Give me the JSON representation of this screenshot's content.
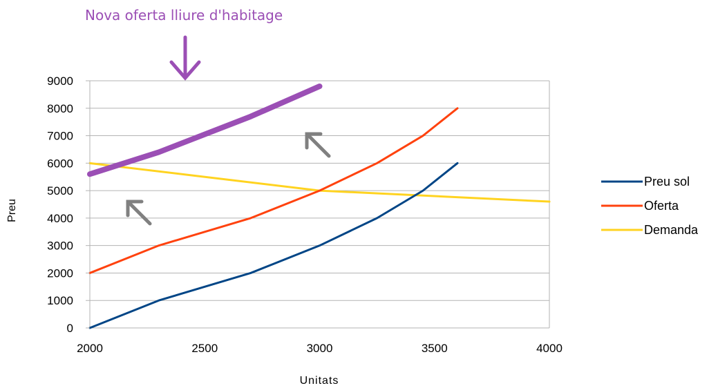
{
  "chart_data": {
    "type": "line",
    "title": "",
    "xlabel": "Unitats",
    "ylabel": "Preu",
    "xlim": [
      2000,
      4000
    ],
    "ylim": [
      0,
      9000
    ],
    "x_ticks": [
      2000,
      2500,
      3000,
      3500,
      4000
    ],
    "y_ticks": [
      0,
      1000,
      2000,
      3000,
      4000,
      5000,
      6000,
      7000,
      8000,
      9000
    ],
    "y_tick_labels": [
      "0",
      "1000",
      "2000",
      "3000",
      "4000",
      "5000",
      "6000",
      "7000",
      "8000",
      "9000"
    ],
    "grid": true,
    "legend_position": "right",
    "series": [
      {
        "name": "Preu sol",
        "color": "#004586",
        "x": [
          2000,
          2300,
          2700,
          3000,
          3250,
          3450,
          3600
        ],
        "y": [
          0,
          1000,
          2000,
          3000,
          4000,
          5000,
          6000
        ]
      },
      {
        "name": "Oferta",
        "color": "#ff420e",
        "x": [
          2000,
          2300,
          2700,
          3000,
          3250,
          3450,
          3600
        ],
        "y": [
          2000,
          3000,
          4000,
          5000,
          6000,
          7000,
          8000
        ]
      },
      {
        "name": "Demanda",
        "color": "#ffd320",
        "x": [
          2000,
          3000,
          4000
        ],
        "y": [
          6000,
          5000,
          4600
        ]
      },
      {
        "name": "",
        "color": "#9b4fb5",
        "x": [
          2000,
          2300,
          2700,
          3000
        ],
        "y": [
          5600,
          6400,
          7700,
          8800
        ]
      }
    ],
    "annotations": [
      {
        "text": "Nova oferta lliure d'habitage",
        "color": "#9b4fb5"
      }
    ]
  }
}
